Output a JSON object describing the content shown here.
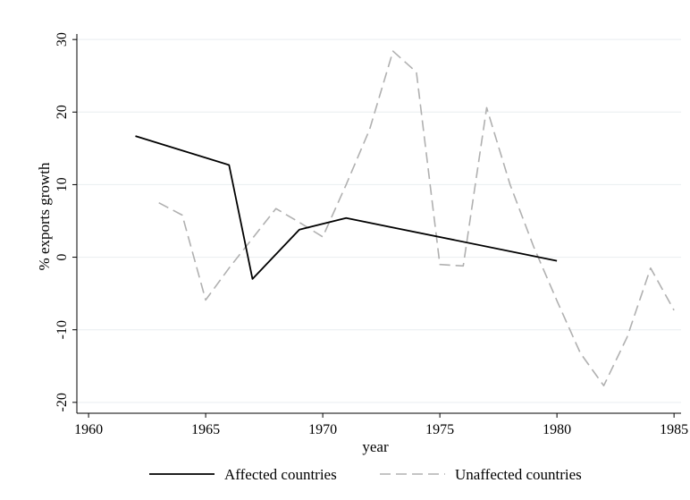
{
  "chart_data": {
    "type": "line",
    "title": "",
    "xlabel": "year",
    "ylabel": "% exports growth",
    "xlim": [
      1959.5,
      1985.3
    ],
    "ylim": [
      -21.5,
      31.5
    ],
    "xticks": [
      1960,
      1965,
      1970,
      1975,
      1980,
      1985
    ],
    "xtick_labels": [
      "1960",
      "1965",
      "1970",
      "1975",
      "1980",
      "1985"
    ],
    "yticks": [
      -20,
      -10,
      0,
      10,
      20,
      30
    ],
    "ytick_labels": [
      "-20",
      "-10",
      "0",
      "10",
      "20",
      "30"
    ],
    "grid": "horizontal",
    "legend_position": "bottom",
    "series": [
      {
        "name": "Affected countries",
        "color": "#000000",
        "style": "solid",
        "x": [
          1962,
          1966,
          1967,
          1969,
          1971,
          1980
        ],
        "y": [
          16.7,
          12.7,
          -3.0,
          3.8,
          5.4,
          -0.5
        ]
      },
      {
        "name": "Unaffected countries",
        "color": "#b0b0b0",
        "style": "dashed",
        "x": [
          1963,
          1964,
          1965,
          1966,
          1967,
          1968,
          1969,
          1970,
          1971,
          1972,
          1973,
          1974,
          1975,
          1976,
          1977,
          1978,
          1979,
          1980,
          1981,
          1982,
          1983,
          1984,
          1985
        ],
        "y": [
          7.5,
          5.8,
          -5.9,
          -1.5,
          2.6,
          6.7,
          4.8,
          2.8,
          10.0,
          17.6,
          28.4,
          25.5,
          -1.0,
          -1.2,
          20.6,
          10.0,
          1.5,
          -6.0,
          -13.2,
          -17.7,
          -11.0,
          -1.5,
          -7.3
        ]
      }
    ]
  }
}
